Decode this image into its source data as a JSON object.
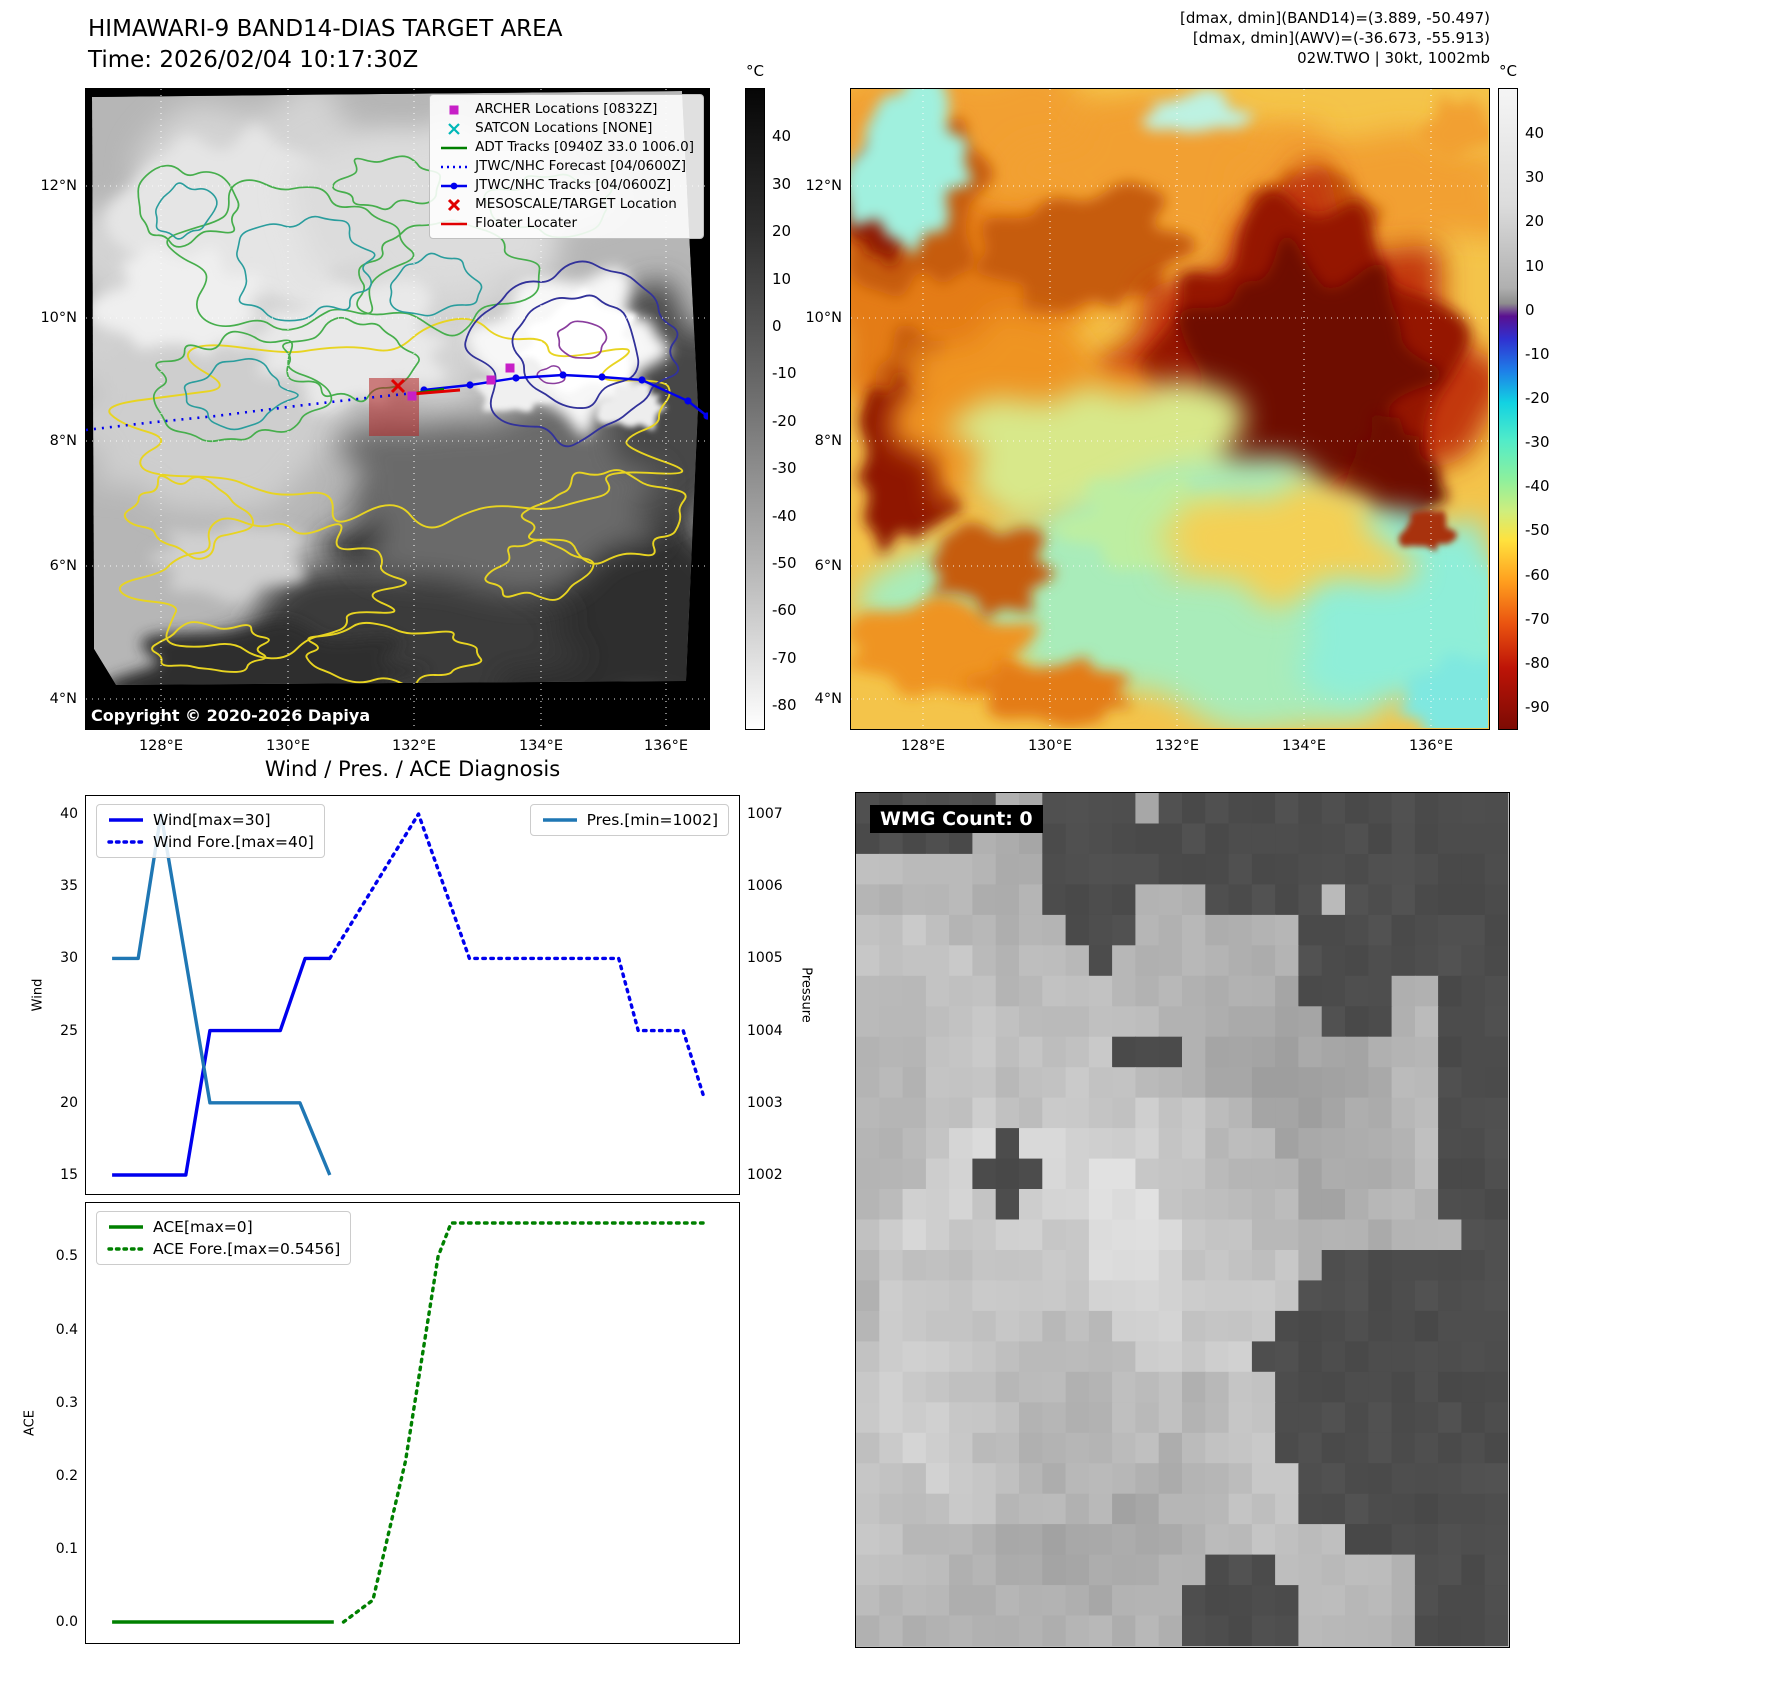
{
  "band14_panel": {
    "title": "HIMAWARI-9 BAND14-DIAS TARGET AREA",
    "subtitle": "Time: 2026/02/04 10:17:30Z",
    "copyright": "Copyright © 2020-2026 Dapiya",
    "colorbar_unit": "°C",
    "colorbar_ticks": [
      40,
      30,
      20,
      10,
      0,
      -10,
      -20,
      -30,
      -40,
      -50,
      -60,
      -70,
      -80
    ],
    "lat_ticks": [
      "12°N",
      "10°N",
      "8°N",
      "6°N",
      "4°N"
    ],
    "lon_ticks": [
      "128°E",
      "130°E",
      "132°E",
      "134°E",
      "136°E"
    ],
    "legend": [
      {
        "label": "ARCHER Locations [0832Z]",
        "marker": "square",
        "color": "#c71fc7"
      },
      {
        "label": "SATCON Locations [NONE]",
        "marker": "x",
        "color": "#00b8b8"
      },
      {
        "label": "ADT Tracks [0940Z 33.0 1006.0]",
        "marker": "line",
        "color": "#008000"
      },
      {
        "label": "JTWC/NHC Forecast [04/0600Z]",
        "marker": "dotted-line",
        "color": "#0000ee"
      },
      {
        "label": "JTWC/NHC Tracks [04/0600Z]",
        "marker": "line-marker",
        "color": "#0000ee"
      },
      {
        "label": "MESOSCALE/TARGET Location",
        "marker": "x-bold",
        "color": "#e00000"
      },
      {
        "label": "Floater Locater",
        "marker": "line",
        "color": "#e00000"
      }
    ]
  },
  "awv_panel": {
    "header_lines": [
      "[dmax, dmin](BAND14)=(3.889, -50.497)",
      "[dmax, dmin](AWV)=(-36.673, -55.913)",
      "02W.TWO | 30kt, 1002mb"
    ],
    "colorbar_unit": "°C",
    "colorbar_ticks": [
      40,
      30,
      20,
      10,
      0,
      -10,
      -20,
      -30,
      -40,
      -50,
      -60,
      -70,
      -80,
      -90
    ],
    "lat_ticks": [
      "12°N",
      "10°N",
      "8°N",
      "6°N",
      "4°N"
    ],
    "lon_ticks": [
      "128°E",
      "130°E",
      "132°E",
      "134°E",
      "136°E"
    ]
  },
  "wmg_panel": {
    "label": "WMG Count: 0"
  },
  "chart_data": [
    {
      "type": "line",
      "title": "Wind / Pres. / ACE Diagnosis",
      "ylabel_left": "Wind",
      "ylabel_right": "Pressure",
      "y_left_ticks": [
        15,
        20,
        25,
        30,
        35,
        40
      ],
      "y_left_range": [
        13.75,
        41.25
      ],
      "y_right_ticks": [
        1002,
        1003,
        1004,
        1005,
        1006,
        1007
      ],
      "y_right_range": [
        1001.75,
        1007.25
      ],
      "x_range": [
        0,
        100
      ],
      "grid": false,
      "series": [
        {
          "name": "Wind[max=30]",
          "axis": "left",
          "style": "solid",
          "color": "#0000ee",
          "points": [
            [
              4,
              15
            ],
            [
              15.3,
              15
            ],
            [
              19,
              25
            ],
            [
              29.8,
              25
            ],
            [
              33.6,
              30
            ],
            [
              37.4,
              30
            ]
          ]
        },
        {
          "name": "Wind Fore.[max=40]",
          "axis": "left",
          "style": "dotted",
          "color": "#0000ee",
          "points": [
            [
              37.4,
              30
            ],
            [
              51,
              40
            ],
            [
              58.8,
              30
            ],
            [
              81.7,
              30
            ],
            [
              84.7,
              25
            ],
            [
              91.6,
              25
            ],
            [
              94.7,
              20.5
            ]
          ]
        },
        {
          "name": "Pres.[min=1002]",
          "axis": "right",
          "style": "solid",
          "color": "#1f77b4",
          "points": [
            [
              4,
              1005
            ],
            [
              8,
              1005
            ],
            [
              11.5,
              1007
            ],
            [
              19,
              1003
            ],
            [
              32.8,
              1003
            ],
            [
              37.4,
              1002
            ]
          ]
        }
      ],
      "legends": [
        {
          "position": "top-left",
          "series": [
            0,
            1
          ]
        },
        {
          "position": "top-right",
          "series": [
            2
          ]
        }
      ]
    },
    {
      "type": "line",
      "ylabel_left": "ACE",
      "y_left_ticks": [
        "0.0",
        "0.1",
        "0.2",
        "0.3",
        "0.4",
        "0.5"
      ],
      "y_left_range": [
        -0.0273,
        0.573
      ],
      "x_range": [
        0,
        100
      ],
      "grid": false,
      "series": [
        {
          "name": "ACE[max=0]",
          "axis": "left",
          "style": "solid",
          "color": "#008000",
          "points": [
            [
              4,
              0
            ],
            [
              38,
              0
            ]
          ]
        },
        {
          "name": "ACE Fore.[max=0.5456]",
          "axis": "left",
          "style": "dotted",
          "color": "#008000",
          "points": [
            [
              39.5,
              0.0
            ],
            [
              44,
              0.03
            ],
            [
              49,
              0.22
            ],
            [
              54,
              0.5
            ],
            [
              56,
              0.5456
            ],
            [
              94.7,
              0.5456
            ]
          ]
        }
      ],
      "legends": [
        {
          "position": "top-left",
          "series": [
            0,
            1
          ]
        }
      ]
    }
  ]
}
